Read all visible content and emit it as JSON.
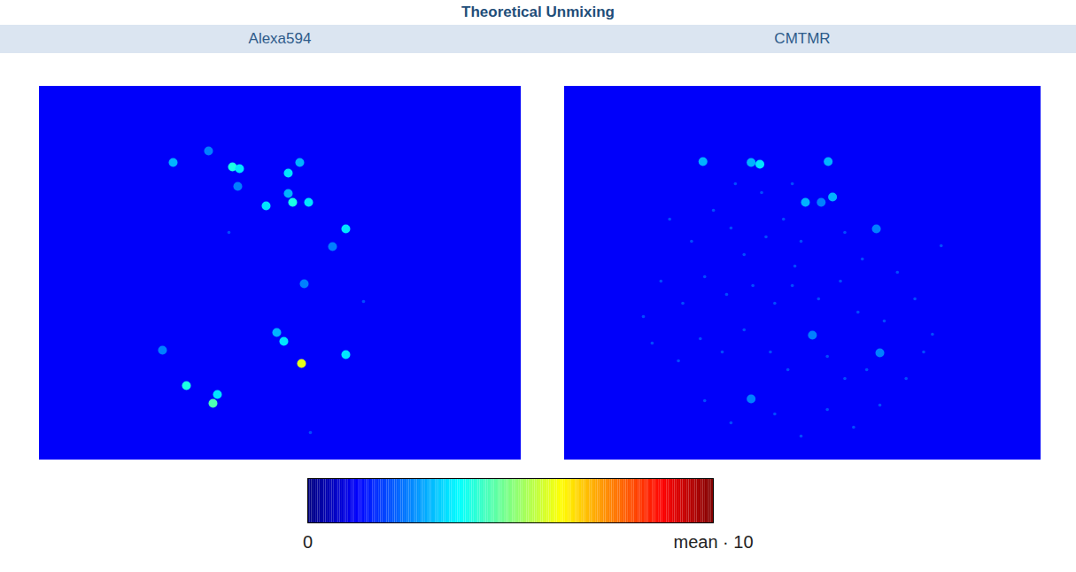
{
  "title": "Theoretical Unmixing",
  "chart_data": [
    {
      "type": "heatmap",
      "title": "Alexa594",
      "xlim": [
        0,
        544
      ],
      "ylim": [
        0,
        422
      ],
      "tick_labels": false,
      "background": 1.2,
      "cells": [
        {
          "x": 151,
          "y": 86,
          "value": 3
        },
        {
          "x": 191,
          "y": 73,
          "value": 2.5
        },
        {
          "x": 218,
          "y": 91,
          "value": 4
        },
        {
          "x": 226,
          "y": 93,
          "value": 3.5
        },
        {
          "x": 281,
          "y": 98,
          "value": 3.5
        },
        {
          "x": 294,
          "y": 86,
          "value": 3
        },
        {
          "x": 224,
          "y": 113,
          "value": 2.5
        },
        {
          "x": 281,
          "y": 121,
          "value": 3
        },
        {
          "x": 256,
          "y": 135,
          "value": 3.5
        },
        {
          "x": 286,
          "y": 131,
          "value": 4
        },
        {
          "x": 304,
          "y": 131,
          "value": 3.5
        },
        {
          "x": 346,
          "y": 161,
          "value": 3.5
        },
        {
          "x": 331,
          "y": 181,
          "value": 2.5
        },
        {
          "x": 214,
          "y": 165,
          "value": 2
        },
        {
          "x": 299,
          "y": 223,
          "value": 2.5
        },
        {
          "x": 366,
          "y": 243,
          "value": 2
        },
        {
          "x": 268,
          "y": 278,
          "value": 3
        },
        {
          "x": 276,
          "y": 288,
          "value": 3.5
        },
        {
          "x": 296,
          "y": 313,
          "value": 6
        },
        {
          "x": 346,
          "y": 303,
          "value": 3.5
        },
        {
          "x": 139,
          "y": 298,
          "value": 2.5
        },
        {
          "x": 166,
          "y": 338,
          "value": 4
        },
        {
          "x": 196,
          "y": 358,
          "value": 4.5
        },
        {
          "x": 201,
          "y": 348,
          "value": 3.5
        },
        {
          "x": 306,
          "y": 391,
          "value": 2
        }
      ]
    },
    {
      "type": "heatmap",
      "title": "CMTMR",
      "xlim": [
        0,
        544
      ],
      "ylim": [
        0,
        422
      ],
      "tick_labels": false,
      "background": 1.2,
      "cells": [
        {
          "x": 158,
          "y": 85,
          "value": 3
        },
        {
          "x": 223,
          "y": 88,
          "value": 3.5
        },
        {
          "x": 213,
          "y": 86,
          "value": 3
        },
        {
          "x": 301,
          "y": 85,
          "value": 3
        },
        {
          "x": 275,
          "y": 131,
          "value": 3
        },
        {
          "x": 293,
          "y": 131,
          "value": 2.5
        },
        {
          "x": 306,
          "y": 125,
          "value": 3
        },
        {
          "x": 356,
          "y": 161,
          "value": 2.5
        },
        {
          "x": 283,
          "y": 281,
          "value": 2.5
        },
        {
          "x": 360,
          "y": 301,
          "value": 2.5
        },
        {
          "x": 263,
          "y": 203,
          "value": 2
        },
        {
          "x": 213,
          "y": 353,
          "value": 2.5
        },
        {
          "x": 120,
          "y": 150,
          "value": 2
        },
        {
          "x": 145,
          "y": 175,
          "value": 2
        },
        {
          "x": 170,
          "y": 140,
          "value": 2
        },
        {
          "x": 190,
          "y": 160,
          "value": 2
        },
        {
          "x": 205,
          "y": 190,
          "value": 2
        },
        {
          "x": 230,
          "y": 170,
          "value": 2
        },
        {
          "x": 250,
          "y": 150,
          "value": 2
        },
        {
          "x": 270,
          "y": 175,
          "value": 2
        },
        {
          "x": 320,
          "y": 165,
          "value": 2
        },
        {
          "x": 340,
          "y": 195,
          "value": 2
        },
        {
          "x": 380,
          "y": 210,
          "value": 2
        },
        {
          "x": 400,
          "y": 240,
          "value": 2
        },
        {
          "x": 110,
          "y": 220,
          "value": 2
        },
        {
          "x": 135,
          "y": 245,
          "value": 2
        },
        {
          "x": 160,
          "y": 215,
          "value": 2
        },
        {
          "x": 185,
          "y": 235,
          "value": 2
        },
        {
          "x": 215,
          "y": 225,
          "value": 2
        },
        {
          "x": 240,
          "y": 245,
          "value": 2
        },
        {
          "x": 260,
          "y": 225,
          "value": 2
        },
        {
          "x": 290,
          "y": 240,
          "value": 2
        },
        {
          "x": 315,
          "y": 220,
          "value": 2
        },
        {
          "x": 335,
          "y": 255,
          "value": 2
        },
        {
          "x": 365,
          "y": 265,
          "value": 2
        },
        {
          "x": 420,
          "y": 280,
          "value": 2
        },
        {
          "x": 100,
          "y": 290,
          "value": 2
        },
        {
          "x": 130,
          "y": 310,
          "value": 2
        },
        {
          "x": 155,
          "y": 285,
          "value": 2
        },
        {
          "x": 180,
          "y": 300,
          "value": 2
        },
        {
          "x": 205,
          "y": 275,
          "value": 2
        },
        {
          "x": 235,
          "y": 300,
          "value": 2
        },
        {
          "x": 255,
          "y": 320,
          "value": 2
        },
        {
          "x": 300,
          "y": 305,
          "value": 2
        },
        {
          "x": 320,
          "y": 330,
          "value": 2
        },
        {
          "x": 345,
          "y": 320,
          "value": 2
        },
        {
          "x": 390,
          "y": 330,
          "value": 2
        },
        {
          "x": 160,
          "y": 355,
          "value": 2
        },
        {
          "x": 190,
          "y": 380,
          "value": 2
        },
        {
          "x": 240,
          "y": 370,
          "value": 2
        },
        {
          "x": 270,
          "y": 395,
          "value": 2
        },
        {
          "x": 300,
          "y": 365,
          "value": 2
        },
        {
          "x": 330,
          "y": 385,
          "value": 2
        },
        {
          "x": 360,
          "y": 360,
          "value": 2
        },
        {
          "x": 225,
          "y": 120,
          "value": 2
        },
        {
          "x": 195,
          "y": 110,
          "value": 2
        },
        {
          "x": 260,
          "y": 110,
          "value": 2
        },
        {
          "x": 430,
          "y": 180,
          "value": 2
        },
        {
          "x": 90,
          "y": 260,
          "value": 2
        },
        {
          "x": 410,
          "y": 300,
          "value": 2
        }
      ]
    }
  ],
  "colorbar": {
    "range": [
      0,
      10
    ],
    "ticks": [
      0,
      {
        "value": 10,
        "label": "mean · 10"
      }
    ]
  }
}
